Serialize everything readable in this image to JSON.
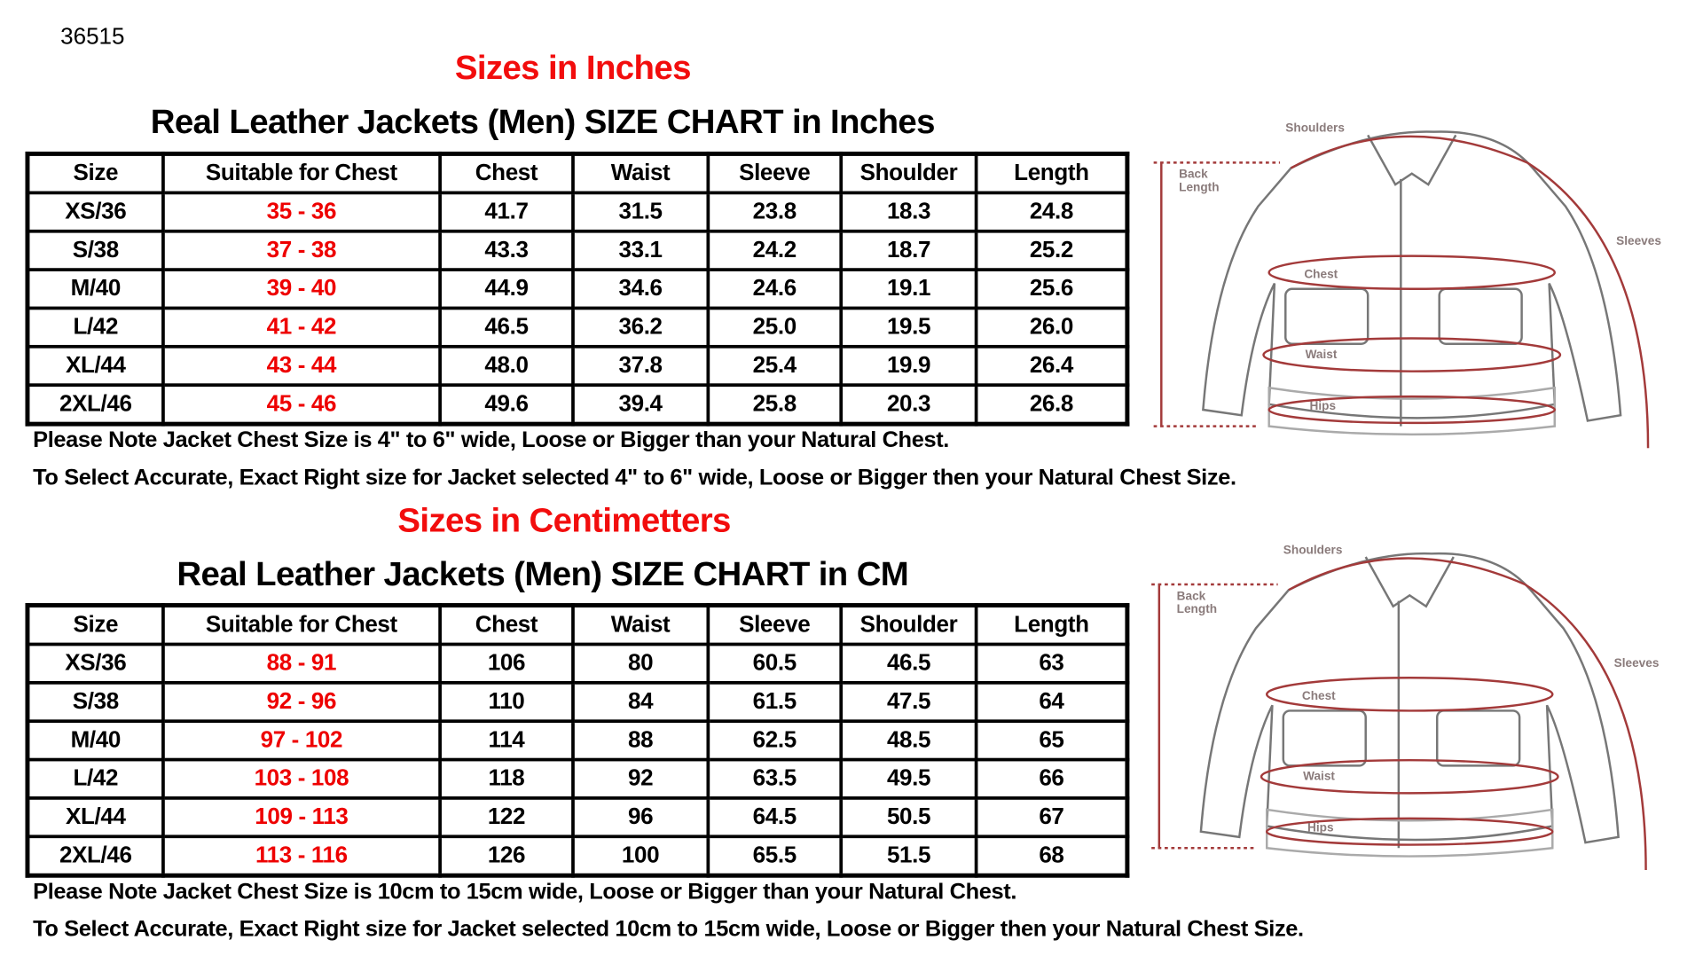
{
  "code": "36515",
  "inches": {
    "heading": "Sizes in Inches",
    "title": "Real Leather Jackets (Men)  SIZE CHART  in Inches",
    "columns": [
      "Size",
      "Suitable for Chest",
      "Chest",
      "Waist",
      "Sleeve",
      "Shoulder",
      "Length"
    ],
    "rows": [
      [
        "XS/36",
        "35 - 36",
        "41.7",
        "31.5",
        "23.8",
        "18.3",
        "24.8"
      ],
      [
        "S/38",
        "37 - 38",
        "43.3",
        "33.1",
        "24.2",
        "18.7",
        "25.2"
      ],
      [
        "M/40",
        "39 - 40",
        "44.9",
        "34.6",
        "24.6",
        "19.1",
        "25.6"
      ],
      [
        "L/42",
        "41 - 42",
        "46.5",
        "36.2",
        "25.0",
        "19.5",
        "26.0"
      ],
      [
        "XL/44",
        "43 - 44",
        "48.0",
        "37.8",
        "25.4",
        "19.9",
        "26.4"
      ],
      [
        "2XL/46",
        "45 - 46",
        "49.6",
        "39.4",
        "25.8",
        "20.3",
        "26.8"
      ]
    ],
    "note1": "Please Note Jacket Chest Size is 4\" to 6\" wide, Loose or Bigger than your Natural Chest.",
    "note2": "To Select Accurate, Exact Right size for Jacket selected 4\" to 6\" wide, Loose or Bigger then your Natural Chest Size."
  },
  "cm": {
    "heading": "Sizes in Centimetters",
    "title": "Real Leather Jackets (Men)  SIZE CHART  in CM",
    "columns": [
      "Size",
      "Suitable for Chest",
      "Chest",
      "Waist",
      "Sleeve",
      "Shoulder",
      "Length"
    ],
    "rows": [
      [
        "XS/36",
        "88 - 91",
        "106",
        "80",
        "60.5",
        "46.5",
        "63"
      ],
      [
        "S/38",
        "92 - 96",
        "110",
        "84",
        "61.5",
        "47.5",
        "64"
      ],
      [
        "M/40",
        "97 - 102",
        "114",
        "88",
        "62.5",
        "48.5",
        "65"
      ],
      [
        "L/42",
        "103 - 108",
        "118",
        "92",
        "63.5",
        "49.5",
        "66"
      ],
      [
        "XL/44",
        "109 - 113",
        "122",
        "96",
        "64.5",
        "50.5",
        "67"
      ],
      [
        "2XL/46",
        "113 - 116",
        "126",
        "100",
        "65.5",
        "51.5",
        "68"
      ]
    ],
    "note1": "Please Note Jacket Chest Size is 10cm to 15cm wide, Loose or Bigger than your Natural Chest.",
    "note2": "To Select Accurate, Exact Right size for Jacket selected 10cm to 15cm wide, Loose or Bigger then your Natural Chest Size."
  },
  "diagram_labels": {
    "shoulders": "Shoulders",
    "back_length": "Back Length",
    "sleeves": "Sleeves",
    "chest": "Chest",
    "waist": "Waist",
    "hips": "Hips"
  },
  "colors": {
    "heading": "#f20d0d",
    "chest_range": "#ee0000",
    "measure_lines": "#a33a3a"
  }
}
